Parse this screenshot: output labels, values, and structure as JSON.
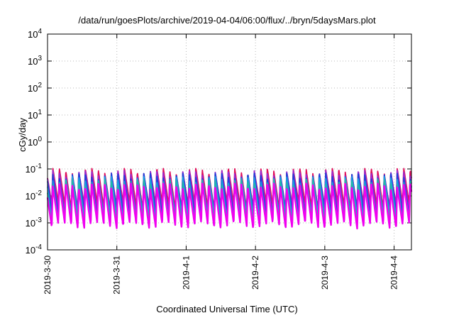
{
  "chart_data": {
    "type": "line",
    "title": "/data/run/goesPlots/archive/2019-04-04/06:00/flux/../bryn/5daysMars.plot",
    "xlabel": "Coordinated Universal Time (UTC)",
    "ylabel": "cGy/day",
    "yscale": "log",
    "ylim": [
      0.0001,
      10000
    ],
    "y_ticks": [
      {
        "value": 0.0001,
        "base": "10",
        "exp": "-4"
      },
      {
        "value": 0.001,
        "base": "10",
        "exp": "-3"
      },
      {
        "value": 0.01,
        "base": "10",
        "exp": "-2"
      },
      {
        "value": 0.1,
        "base": "10",
        "exp": "-1"
      },
      {
        "value": 1,
        "base": "10",
        "exp": "0"
      },
      {
        "value": 10,
        "base": "10",
        "exp": "1"
      },
      {
        "value": 100,
        "base": "10",
        "exp": "2"
      },
      {
        "value": 1000,
        "base": "10",
        "exp": "3"
      },
      {
        "value": 10000,
        "base": "10",
        "exp": "4"
      }
    ],
    "xlim": [
      "2019-03-30",
      "2019-04-04 06:00"
    ],
    "x_ticks": [
      "2019-3-30",
      "2019-3-31",
      "2019-4-1",
      "2019-4-2",
      "2019-4-3",
      "2019-4-4"
    ],
    "grid": true,
    "series_colors": [
      "#e0105a",
      "#9a2ad0",
      "#1f3fd8",
      "#1a9fe0",
      "#22b8a8",
      "#f000f0"
    ],
    "pattern": {
      "sawtooth_period_hours": 2.25,
      "peak_values": [
        0.09,
        0.075,
        0.06,
        0.045,
        0.035,
        0.025
      ],
      "trough_values": [
        0.0045,
        0.003,
        0.0022,
        0.0016,
        0.0011,
        0.0008
      ],
      "description": "periodic sawtooth, sharp rise then decay"
    }
  }
}
